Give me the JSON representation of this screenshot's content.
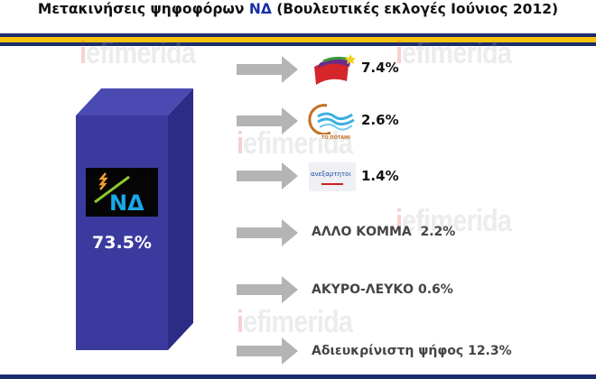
{
  "title": {
    "prefix": "Μετακινήσεις ψηφοφόρων ",
    "party": "ΝΔ",
    "suffix": " (Βουλευτικές εκλογές Ιούνιος 2012)"
  },
  "watermark": {
    "first": "i",
    "rest": "efimerida"
  },
  "source": {
    "logo_text": "ΝΔ",
    "value": "73.5%"
  },
  "flows": [
    {
      "party": "ΣΥΡΙΖΑ",
      "logo": "syriza-flag-logo",
      "value": "7.4%"
    },
    {
      "party": "Το Ποτάμι",
      "logo": "potami-logo",
      "logo_caption": "ΤΟ ΠΟΤΑΜΙ",
      "value": "2.6%"
    },
    {
      "party": "Ανεξάρτητοι Έλληνες",
      "logo": "anel-logo",
      "logo_caption": "ανεξαρτητοι",
      "value": "1.4%"
    },
    {
      "label": "ΑΛΛΟ ΚΟΜΜΑ  2.2%"
    },
    {
      "label": "ΑΚΥΡΟ-ΛΕΥΚΟ 0.6%"
    },
    {
      "label": "Αδιευκρίνιστη ψήφος 12.3%"
    }
  ],
  "colors": {
    "navy": "#1c2d6b",
    "yellow": "#f8c20a",
    "box_front": "#3b3a9e",
    "arrow": "#b4b4b4"
  }
}
